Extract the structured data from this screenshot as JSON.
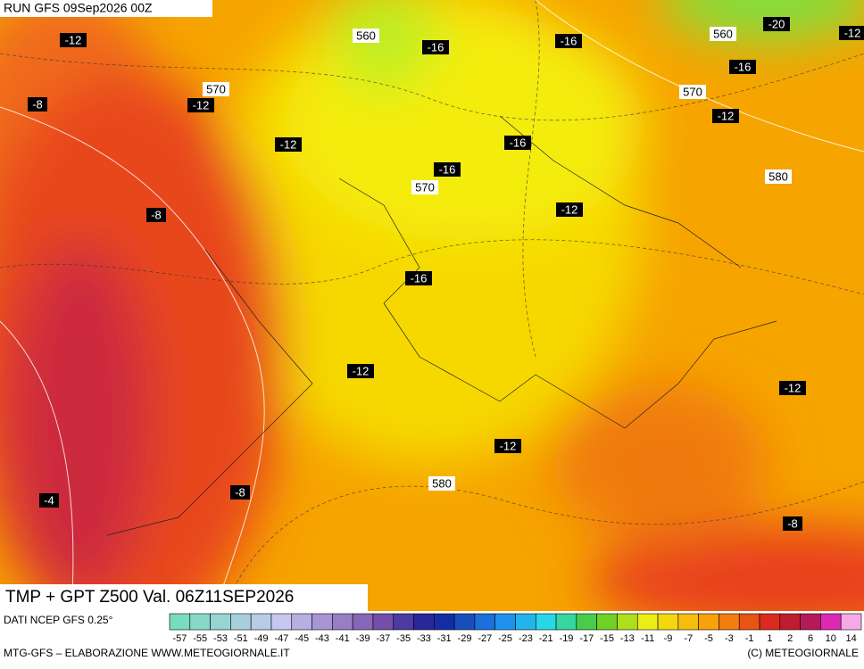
{
  "header": {
    "run": "RUN GFS 09Sep2026 00Z"
  },
  "map": {
    "labels": [
      "-12",
      "560",
      "-16",
      "-16",
      "560",
      "-20",
      "-12",
      "-16",
      "570",
      "-8",
      "-12",
      "570",
      "-12",
      "-12",
      "-16",
      "-16",
      "570",
      "580",
      "-8",
      "-12",
      "-16",
      "-12",
      "-12",
      "-12",
      "580",
      "-8",
      "-4",
      "-8"
    ]
  },
  "title": "TMP + GPT Z500 Val. 06Z11SEP2026",
  "footer": {
    "source": "DATI NCEP GFS 0.25°",
    "credit": "MTG-GFS – ELABORAZIONE WWW.METEOGIORNALE.IT",
    "copyright": "(C) METEOGIORNALE"
  },
  "colorbar": {
    "ticks": [
      -57,
      -55,
      -53,
      -51,
      -49,
      -47,
      -45,
      -43,
      -41,
      -39,
      -37,
      -35,
      -33,
      -31,
      -29,
      -27,
      -25,
      -23,
      -21,
      -19,
      -17,
      -15,
      -13,
      -11,
      -9,
      -7,
      -5,
      -3,
      -1,
      1,
      2,
      6,
      10,
      14
    ]
  }
}
